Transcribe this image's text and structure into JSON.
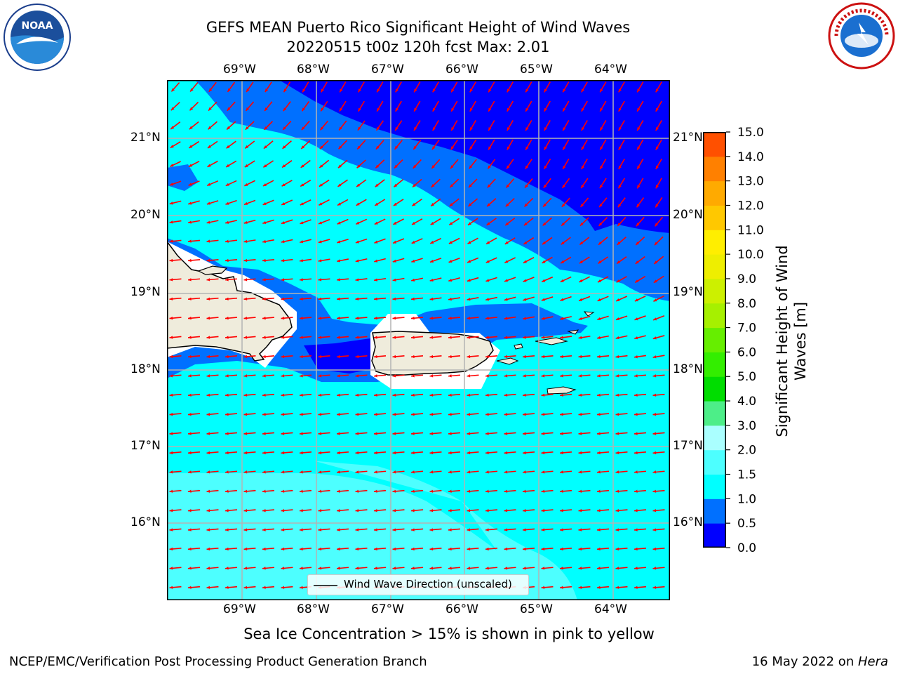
{
  "title": {
    "line1": "GEFS MEAN Puerto Rico Significant Height of Wind Waves",
    "line2": "20220515 t00z 120h fcst   Max: 2.01"
  },
  "map": {
    "lon_labels": [
      "69°W",
      "68°W",
      "67°W",
      "66°W",
      "65°W",
      "64°W"
    ],
    "lat_labels": [
      "21°N",
      "20°N",
      "19°N",
      "18°N",
      "17°N",
      "16°N"
    ],
    "legend_label": "Wind Wave Direction (unscaled)",
    "arrow_color": "#ff0000",
    "land_color": "#efecdc",
    "regions": [
      "Hispaniola",
      "Puerto Rico",
      "Virgin Islands"
    ]
  },
  "colorbar": {
    "label": "Significant Height of Wind Waves [m]",
    "ticks": [
      "0.0",
      "0.5",
      "1.0",
      "1.5",
      "2.0",
      "3.0",
      "4.0",
      "5.0",
      "6.0",
      "7.0",
      "8.0",
      "9.0",
      "10.0",
      "11.0",
      "12.0",
      "13.0",
      "14.0",
      "15.0"
    ],
    "colors": [
      "#0000ff",
      "#0070ff",
      "#00ffff",
      "#4dffff",
      "#aaffff",
      "#4dee88",
      "#00dd00",
      "#33ee00",
      "#66ee00",
      "#a6f000",
      "#ccf000",
      "#eeee00",
      "#ffee00",
      "#ffc800",
      "#ffaa00",
      "#ff8000",
      "#ff5000",
      "#ff2800",
      "#ff0000"
    ]
  },
  "caption": "Sea Ice Concentration > 15% is shown in pink to yellow",
  "footer": {
    "left": "NCEP/EMC/Verification Post Processing Product Generation Branch",
    "right_prefix": "16 May 2022 on ",
    "right_host": "Hera"
  },
  "logos": {
    "noaa": "NOAA",
    "nws": "NATIONAL WEATHER SERVICE"
  }
}
